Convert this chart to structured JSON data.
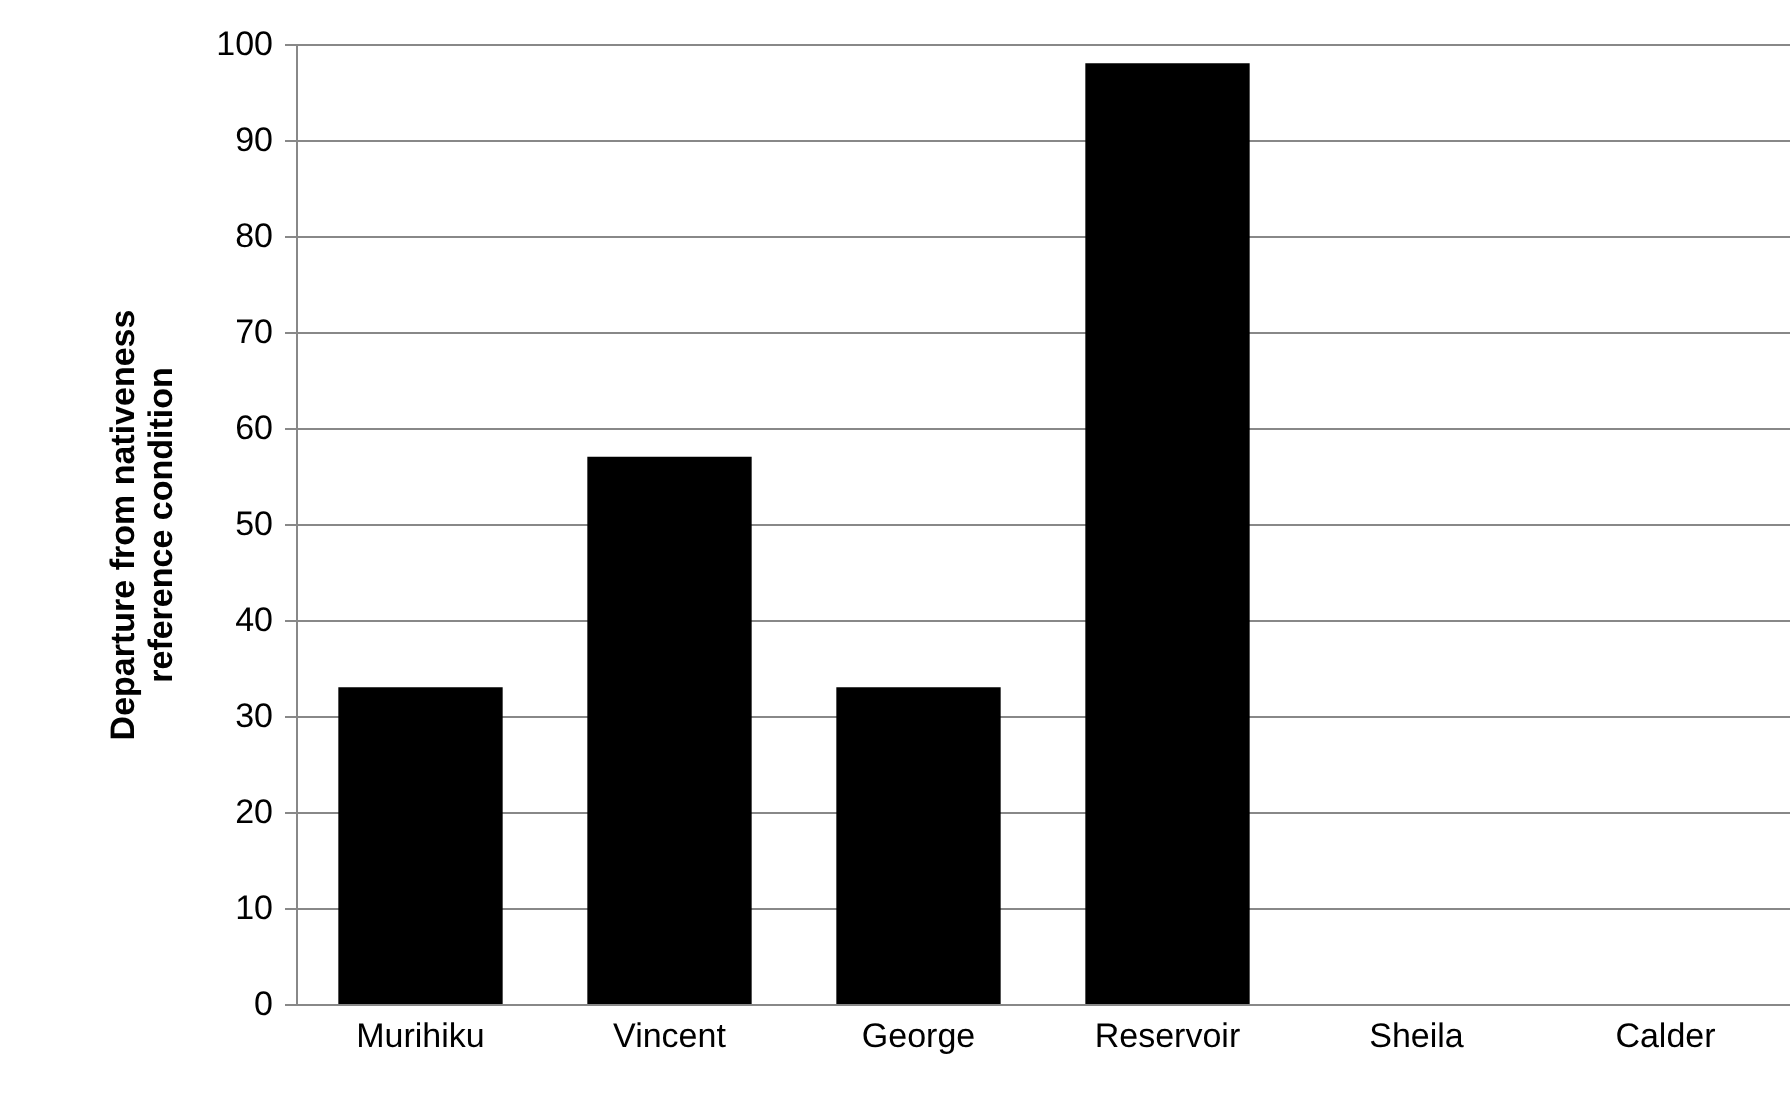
{
  "chart_data": {
    "type": "bar",
    "ylabel": "Departure from nativeness reference condition",
    "categories": [
      "Murihiku",
      "Vincent",
      "George",
      "Reservoir",
      "Sheila",
      "Calder"
    ],
    "values": [
      33,
      57,
      33,
      98,
      0,
      0
    ],
    "color": "#000000",
    "ylim": [
      0,
      100
    ],
    "yticks": [
      0,
      10,
      20,
      30,
      40,
      50,
      60,
      70,
      80,
      90,
      100
    ],
    "grid": "y"
  }
}
